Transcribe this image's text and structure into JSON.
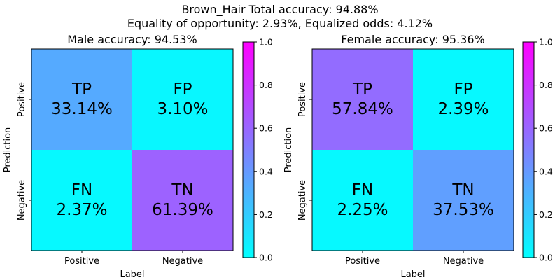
{
  "figure": {
    "title_line1": "Brown_Hair   Total accuracy: 94.88%",
    "title_line2": "Equality of opportunity: 2.93%, Equalized odds: 4.12%"
  },
  "colormap": {
    "name": "cool",
    "stops": [
      "#00ffff",
      "#ff00ff"
    ]
  },
  "chart_data": [
    {
      "type": "heatmap",
      "title": "Male accuracy: 94.53%",
      "xlabel": "Label",
      "ylabel": "Prediction",
      "x_categories": [
        "Positive",
        "Negative"
      ],
      "y_categories": [
        "Positive",
        "Negative"
      ],
      "cells": [
        [
          {
            "label": "TP",
            "value": "33.14%",
            "fraction": 0.3314
          },
          {
            "label": "FP",
            "value": "3.10%",
            "fraction": 0.031
          }
        ],
        [
          {
            "label": "FN",
            "value": "2.37%",
            "fraction": 0.0237
          },
          {
            "label": "TN",
            "value": "61.39%",
            "fraction": 0.6139
          }
        ]
      ],
      "colorbar": {
        "range": [
          0,
          1
        ],
        "ticks": [
          "0.0",
          "0.2",
          "0.4",
          "0.6",
          "0.8",
          "1.0"
        ]
      }
    },
    {
      "type": "heatmap",
      "title": "Female accuracy: 95.36%",
      "xlabel": "Label",
      "ylabel": "Prediction",
      "x_categories": [
        "Positive",
        "Negative"
      ],
      "y_categories": [
        "Positive",
        "Negative"
      ],
      "cells": [
        [
          {
            "label": "TP",
            "value": "57.84%",
            "fraction": 0.5784
          },
          {
            "label": "FP",
            "value": "2.39%",
            "fraction": 0.0239
          }
        ],
        [
          {
            "label": "FN",
            "value": "2.25%",
            "fraction": 0.0225
          },
          {
            "label": "TN",
            "value": "37.53%",
            "fraction": 0.3753
          }
        ]
      ],
      "colorbar": {
        "range": [
          0,
          1
        ],
        "ticks": [
          "0.0",
          "0.2",
          "0.4",
          "0.6",
          "0.8",
          "1.0"
        ]
      }
    }
  ]
}
